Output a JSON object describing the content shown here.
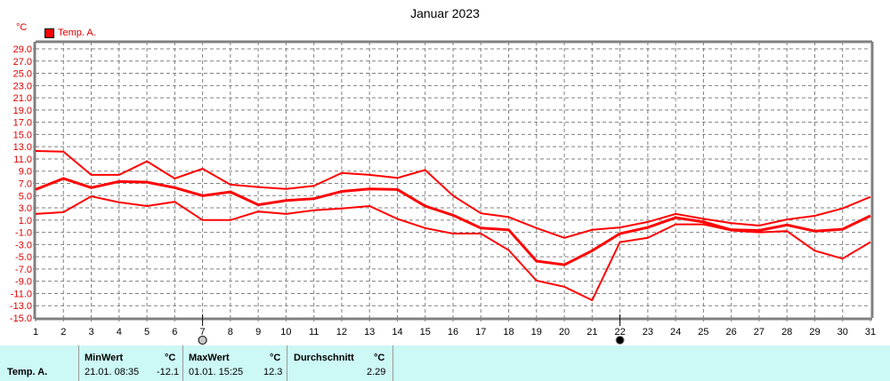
{
  "chart_data": {
    "type": "line",
    "title": "Januar 2023",
    "ylabel": "°C",
    "xlabel": "",
    "ylim": [
      -15.0,
      29.0
    ],
    "xlim": [
      1,
      31
    ],
    "grid": true,
    "legend": {
      "position": "top-left",
      "entries": [
        "Temp. A."
      ]
    },
    "y_ticks": [
      "29.0",
      "27.0",
      "25.0",
      "23.0",
      "21.0",
      "19.0",
      "17.0",
      "15.0",
      "13.0",
      "11.0",
      "9.0",
      "7.0",
      "5.0",
      "3.0",
      "1.0",
      "-1.0",
      "-3.0",
      "-5.0",
      "-7.0",
      "-9.0",
      "-11.0",
      "-13.0",
      "-15.0"
    ],
    "x": [
      1,
      2,
      3,
      4,
      5,
      6,
      7,
      8,
      9,
      10,
      11,
      12,
      13,
      14,
      15,
      16,
      17,
      18,
      19,
      20,
      21,
      22,
      23,
      24,
      25,
      26,
      27,
      28,
      29,
      30,
      31
    ],
    "series": [
      {
        "name": "Temp. A. max",
        "color": "#ff0000",
        "width": 2,
        "values": [
          12.3,
          12.2,
          8.4,
          8.4,
          10.6,
          7.8,
          9.4,
          6.8,
          6.4,
          6.1,
          6.6,
          8.7,
          8.4,
          7.9,
          9.2,
          5.0,
          2.1,
          1.5,
          -0.3,
          -1.9,
          -0.6,
          -0.2,
          0.7,
          2.0,
          1.2,
          0.5,
          0.1,
          1.1,
          1.7,
          2.9,
          4.8
        ]
      },
      {
        "name": "Temp. A. avg",
        "color": "#ff0000",
        "width": 3,
        "values": [
          6.0,
          7.8,
          6.3,
          7.3,
          7.2,
          6.3,
          5.0,
          5.6,
          3.5,
          4.2,
          4.5,
          5.7,
          6.1,
          6.0,
          3.3,
          1.8,
          -0.3,
          -0.6,
          -5.7,
          -6.3,
          -4.0,
          -1.2,
          -0.2,
          1.4,
          0.7,
          -0.6,
          -0.7,
          0.2,
          -0.8,
          -0.5,
          1.7
        ]
      },
      {
        "name": "Temp. A. min",
        "color": "#ff0000",
        "width": 2,
        "values": [
          2.0,
          2.3,
          4.9,
          3.9,
          3.3,
          4.0,
          1.0,
          1.0,
          2.4,
          2.0,
          2.6,
          2.9,
          3.3,
          1.2,
          -0.3,
          -1.2,
          -1.2,
          -3.9,
          -8.9,
          -9.9,
          -12.1,
          -2.6,
          -1.9,
          0.3,
          0.3,
          -0.7,
          -1.0,
          -0.8,
          -4.0,
          -5.3,
          -2.6
        ]
      }
    ],
    "annotations": [
      {
        "type": "marker",
        "x": 7,
        "style": "hollow-circle",
        "meaning": "max marker"
      },
      {
        "type": "marker",
        "x": 22,
        "style": "filled-circle",
        "meaning": "min marker"
      }
    ]
  },
  "header": {
    "title": "Januar 2023",
    "unit": "°C",
    "legend_label": "Temp. A."
  },
  "stats": {
    "series_label": "Temp. A.",
    "min": {
      "header": "MinWert",
      "unit": "°C",
      "datetime": "21.01.  08:35",
      "value": "-12.1"
    },
    "max": {
      "header": "MaxWert",
      "unit": "°C",
      "datetime": "01.01.  15:25",
      "value": "12.3"
    },
    "avg": {
      "header": "Durchschnitt",
      "unit": "°C",
      "value": "2.29"
    }
  },
  "colors": {
    "line": "#ff0000",
    "axis_label": "#e00000",
    "grid": "#808080",
    "frame": "#808080",
    "stats_bg": "#ccf8f6"
  }
}
